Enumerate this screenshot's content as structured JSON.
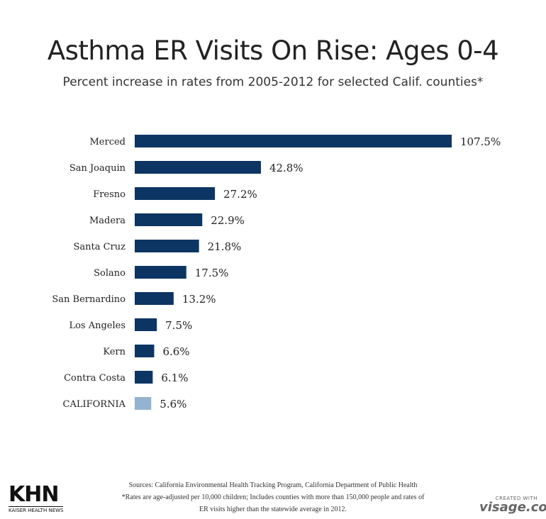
{
  "chart_data": {
    "type": "bar",
    "orientation": "horizontal",
    "title": "Asthma ER Visits On Rise: Ages 0-4",
    "subtitle": "Percent increase in rates from 2005-2012 for selected Calif. counties*",
    "categories": [
      "Merced",
      "San Joaquin",
      "Fresno",
      "Madera",
      "Santa Cruz",
      "Solano",
      "San Bernardino",
      "Los Angeles",
      "Kern",
      "Contra Costa",
      "CALIFORNIA"
    ],
    "values": [
      107.5,
      42.8,
      27.2,
      22.9,
      21.8,
      17.5,
      13.2,
      7.5,
      6.6,
      6.1,
      5.6
    ],
    "data_labels": [
      "107.5%",
      "42.8%",
      "27.2%",
      "22.9%",
      "21.8%",
      "17.5%",
      "13.2%",
      "7.5%",
      "6.6%",
      "6.1%",
      "5.6%"
    ],
    "xlim": [
      0,
      107.5
    ],
    "grid": false,
    "colors": {
      "county": "#0d3563",
      "state": "#93b3d1"
    }
  },
  "footer": {
    "sources": "Sources: California Environmental Health Tracking Program, California Department of Public Health",
    "note_line1": "*Rates are age-adjusted per 10,000 children; Includes counties with more than 150,000 people and rates of",
    "note_line2": "ER visits higher than the statewide average in 2012."
  },
  "logo": {
    "khn": "KHN",
    "khn_full": "KAISER HEALTH NEWS"
  },
  "credit": {
    "small": "CREATED WITH",
    "brand": "visage.co"
  }
}
